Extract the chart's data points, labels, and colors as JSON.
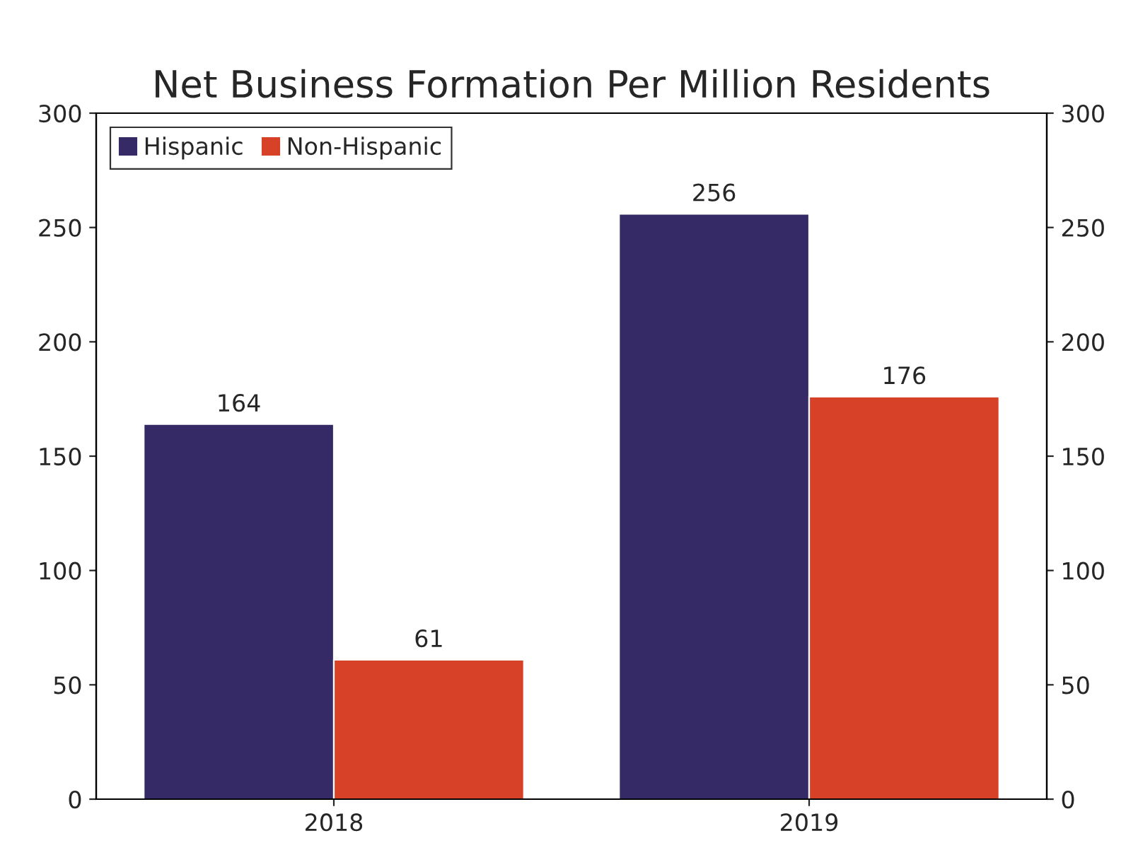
{
  "chart_data": {
    "type": "bar",
    "title": "Net Business Formation Per Million Residents",
    "categories": [
      "2018",
      "2019"
    ],
    "series": [
      {
        "name": "Hispanic",
        "color": "#352a66",
        "values": [
          164,
          256
        ]
      },
      {
        "name": "Non-Hispanic",
        "color": "#d64127",
        "values": [
          61,
          176
        ]
      }
    ],
    "ylim": [
      0,
      300
    ],
    "yticks": [
      0,
      50,
      100,
      150,
      200,
      250,
      300
    ],
    "y2lim": [
      0,
      300
    ],
    "y2ticks": [
      0,
      50,
      100,
      150,
      200,
      250,
      300
    ],
    "data_labels": true,
    "legend": "top left",
    "grid": false
  }
}
